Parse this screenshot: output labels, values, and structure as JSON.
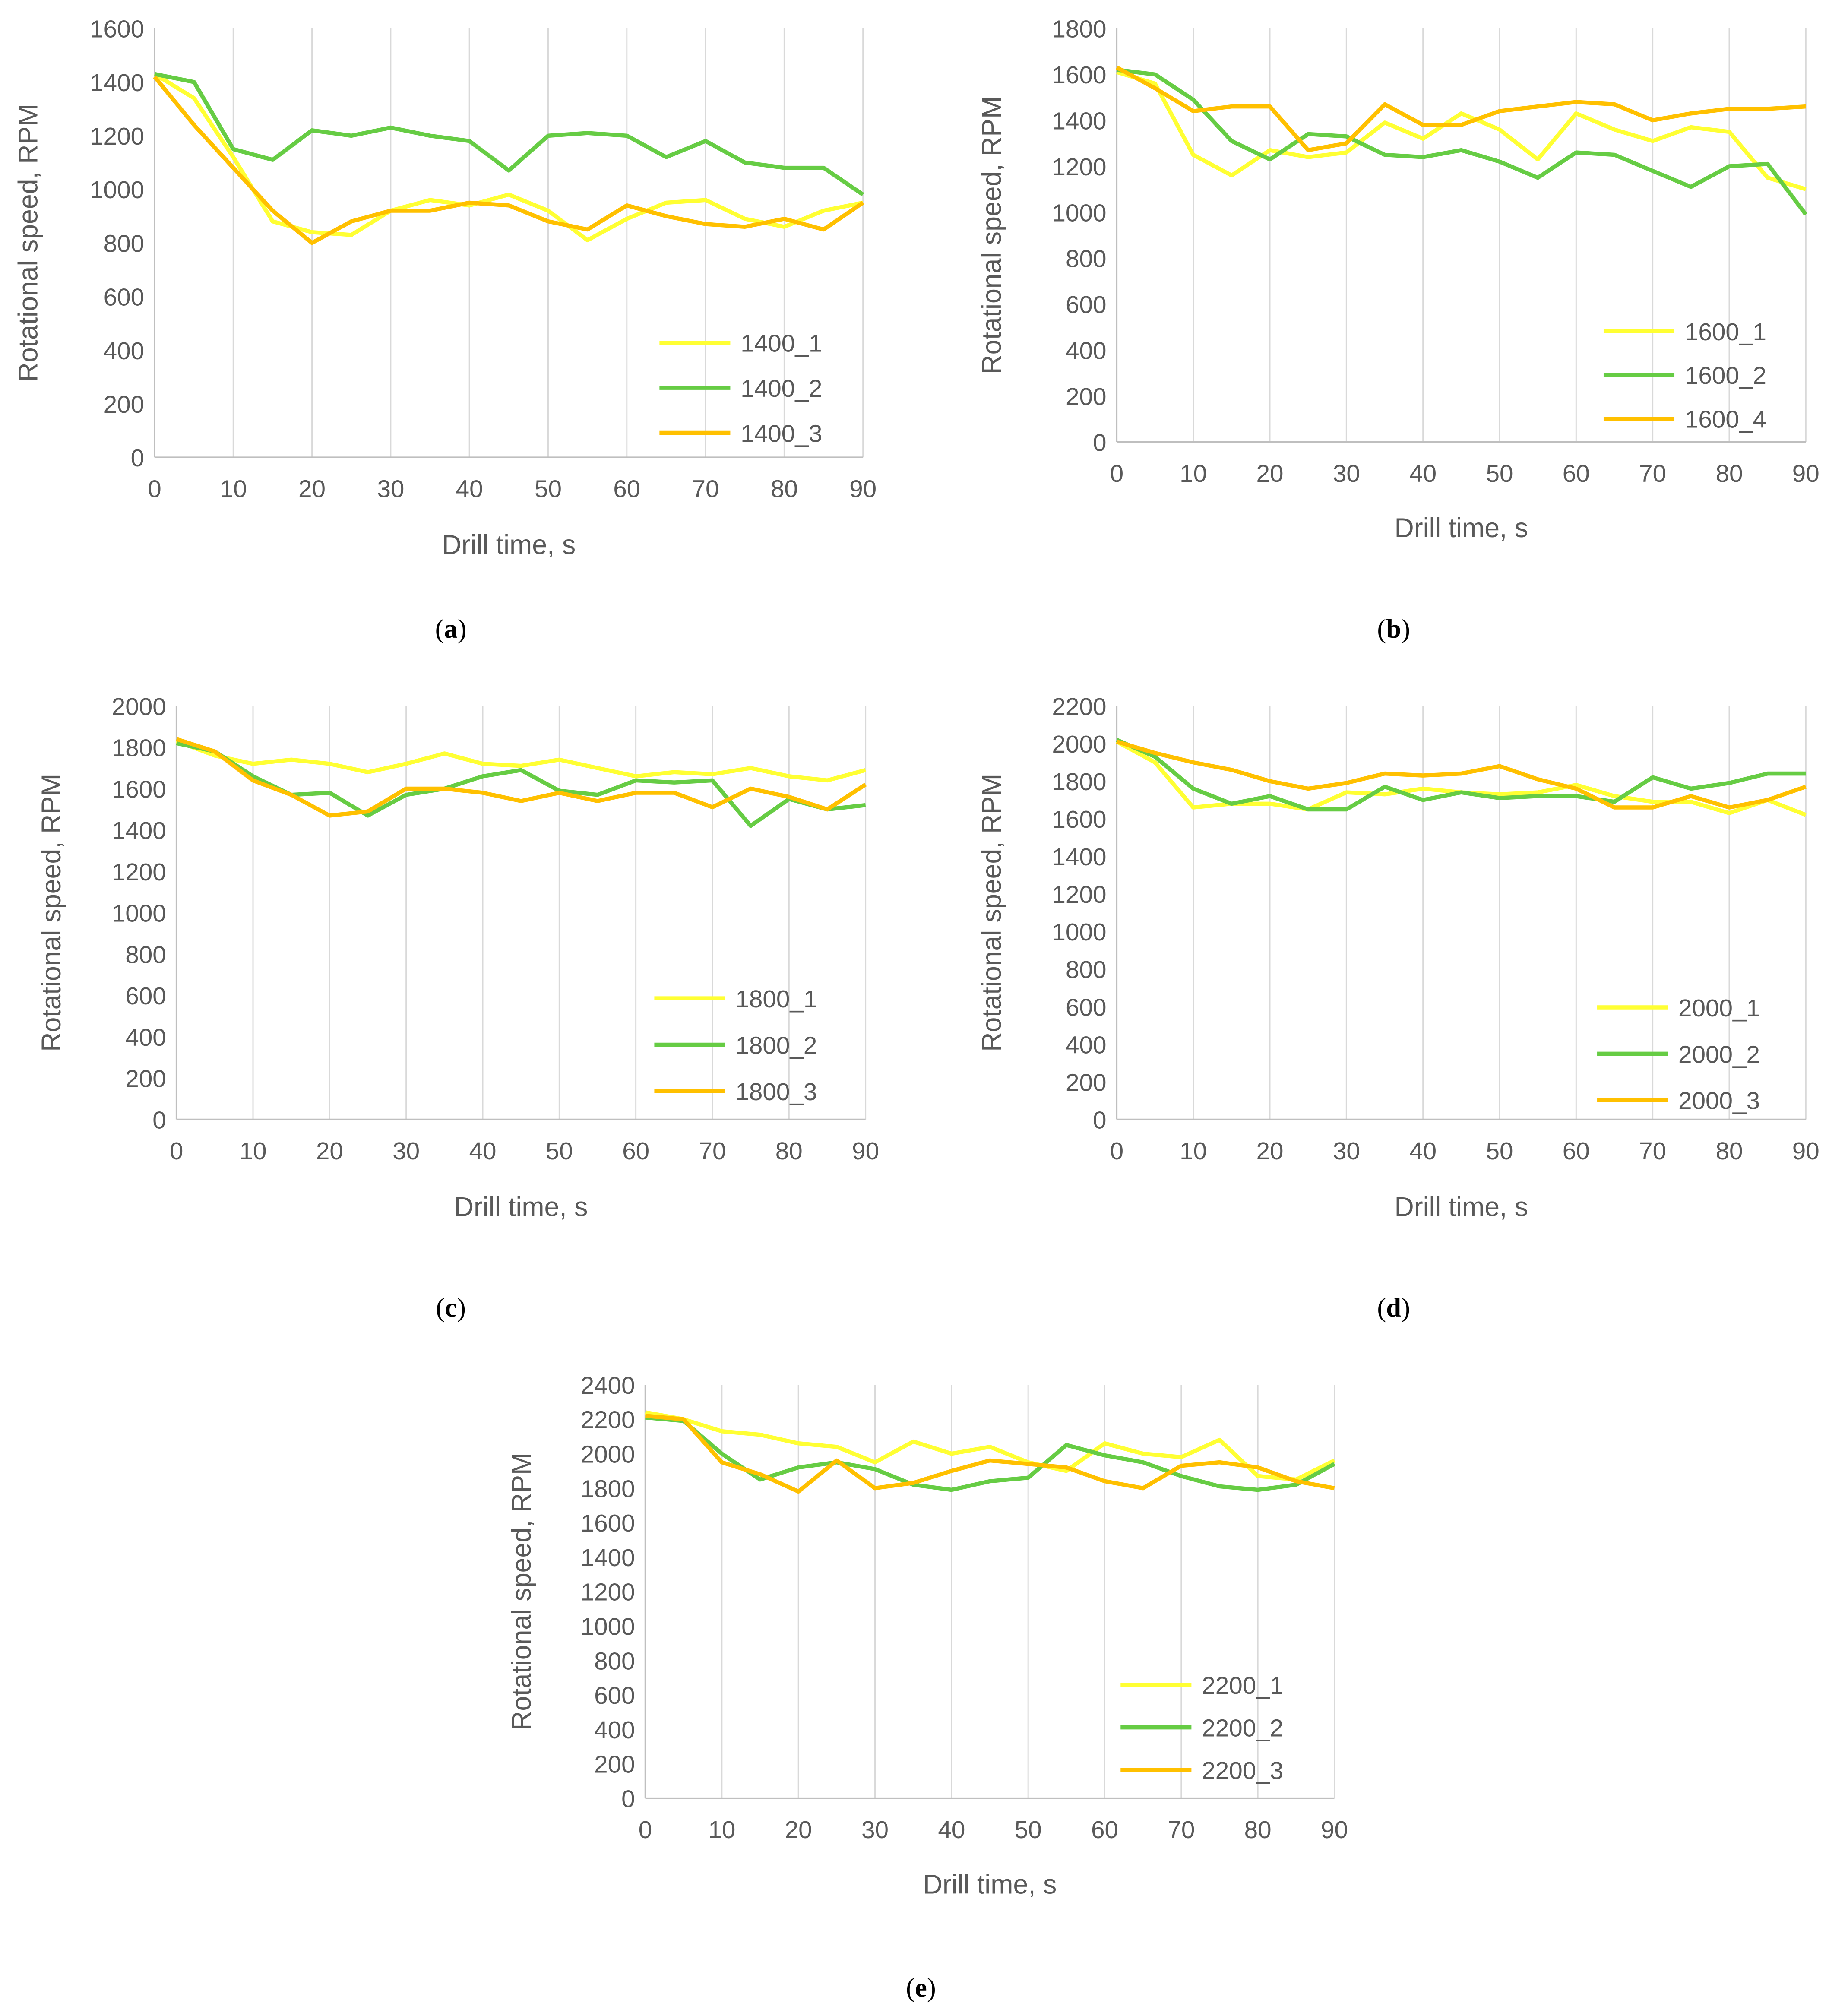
{
  "colors": {
    "series1": "#FFFF33",
    "series2": "#66CC44",
    "series3": "#FFC000",
    "grid": "#D9D9D9",
    "axis": "#BFBFBF"
  },
  "chart_data": [
    {
      "type": "line",
      "caption": "a",
      "xlabel": "Drill time, s",
      "ylabel": "Rotational speed, RPM",
      "xlim": [
        0,
        90
      ],
      "ylim": [
        0,
        1600
      ],
      "xticks": [
        0,
        10,
        20,
        30,
        40,
        50,
        60,
        70,
        80,
        90
      ],
      "yticks": [
        0,
        200,
        400,
        600,
        800,
        1000,
        1200,
        1400,
        1600
      ],
      "grid": "vertical",
      "legend": "bottom-right",
      "x": [
        0,
        5,
        10,
        15,
        20,
        25,
        30,
        35,
        40,
        45,
        50,
        55,
        60,
        65,
        70,
        75,
        80,
        85,
        90
      ],
      "series": [
        {
          "name": "1400_1",
          "values": [
            1430,
            1340,
            1120,
            880,
            840,
            830,
            920,
            960,
            940,
            980,
            920,
            810,
            890,
            950,
            960,
            890,
            860,
            920,
            950
          ]
        },
        {
          "name": "1400_2",
          "values": [
            1430,
            1400,
            1150,
            1110,
            1220,
            1200,
            1230,
            1200,
            1180,
            1070,
            1200,
            1210,
            1200,
            1120,
            1180,
            1100,
            1080,
            1080,
            980
          ]
        },
        {
          "name": "1400_3",
          "values": [
            1420,
            1240,
            1080,
            920,
            800,
            880,
            920,
            920,
            950,
            940,
            880,
            850,
            940,
            900,
            870,
            860,
            890,
            850,
            950
          ]
        }
      ]
    },
    {
      "type": "line",
      "caption": "b",
      "xlabel": "Drill time, s",
      "ylabel": "Rotational speed, RPM",
      "xlim": [
        0,
        90
      ],
      "ylim": [
        0,
        1800
      ],
      "xticks": [
        0,
        10,
        20,
        30,
        40,
        50,
        60,
        70,
        80,
        90
      ],
      "yticks": [
        0,
        200,
        400,
        600,
        800,
        1000,
        1200,
        1400,
        1600,
        1800
      ],
      "grid": "vertical",
      "legend": "bottom-right",
      "x": [
        0,
        5,
        10,
        15,
        20,
        25,
        30,
        35,
        40,
        45,
        50,
        55,
        60,
        65,
        70,
        75,
        80,
        85,
        90
      ],
      "series": [
        {
          "name": "1600_1",
          "values": [
            1610,
            1560,
            1250,
            1160,
            1270,
            1240,
            1260,
            1390,
            1320,
            1430,
            1360,
            1230,
            1430,
            1360,
            1310,
            1370,
            1350,
            1150,
            1100
          ]
        },
        {
          "name": "1600_2",
          "values": [
            1620,
            1600,
            1490,
            1310,
            1230,
            1340,
            1330,
            1250,
            1240,
            1270,
            1220,
            1150,
            1260,
            1250,
            1180,
            1110,
            1200,
            1210,
            990
          ]
        },
        {
          "name": "1600_4",
          "values": [
            1630,
            1540,
            1440,
            1460,
            1460,
            1270,
            1300,
            1470,
            1380,
            1380,
            1440,
            1460,
            1480,
            1470,
            1400,
            1430,
            1450,
            1450,
            1460
          ]
        }
      ]
    },
    {
      "type": "line",
      "caption": "c",
      "xlabel": "Drill time, s",
      "ylabel": "Rotational speed, RPM",
      "xlim": [
        0,
        90
      ],
      "ylim": [
        0,
        2000
      ],
      "xticks": [
        0,
        10,
        20,
        30,
        40,
        50,
        60,
        70,
        80,
        90
      ],
      "yticks": [
        0,
        200,
        400,
        600,
        800,
        1000,
        1200,
        1400,
        1600,
        1800,
        2000
      ],
      "grid": "vertical",
      "legend": "bottom-right",
      "x": [
        0,
        5,
        10,
        15,
        20,
        25,
        30,
        35,
        40,
        45,
        50,
        55,
        60,
        65,
        70,
        75,
        80,
        85,
        90
      ],
      "series": [
        {
          "name": "1800_1",
          "values": [
            1830,
            1760,
            1720,
            1740,
            1720,
            1680,
            1720,
            1770,
            1720,
            1710,
            1740,
            1700,
            1660,
            1680,
            1670,
            1700,
            1660,
            1640,
            1690
          ]
        },
        {
          "name": "1800_2",
          "values": [
            1820,
            1780,
            1660,
            1570,
            1580,
            1470,
            1570,
            1600,
            1660,
            1690,
            1590,
            1570,
            1640,
            1630,
            1640,
            1420,
            1550,
            1500,
            1520
          ]
        },
        {
          "name": "1800_3",
          "values": [
            1840,
            1780,
            1640,
            1570,
            1470,
            1490,
            1600,
            1600,
            1580,
            1540,
            1580,
            1540,
            1580,
            1580,
            1510,
            1600,
            1560,
            1500,
            1620
          ]
        }
      ]
    },
    {
      "type": "line",
      "caption": "d",
      "xlabel": "Drill time, s",
      "ylabel": "Rotational speed, RPM",
      "xlim": [
        0,
        90
      ],
      "ylim": [
        0,
        2200
      ],
      "xticks": [
        0,
        10,
        20,
        30,
        40,
        50,
        60,
        70,
        80,
        90
      ],
      "yticks": [
        0,
        200,
        400,
        600,
        800,
        1000,
        1200,
        1400,
        1600,
        1800,
        2000,
        2200
      ],
      "grid": "vertical",
      "legend": "bottom-right",
      "x": [
        0,
        5,
        10,
        15,
        20,
        25,
        30,
        35,
        40,
        45,
        50,
        55,
        60,
        65,
        70,
        75,
        80,
        85,
        90
      ],
      "series": [
        {
          "name": "2000_1",
          "values": [
            2010,
            1900,
            1660,
            1680,
            1680,
            1650,
            1740,
            1730,
            1760,
            1740,
            1730,
            1740,
            1780,
            1720,
            1690,
            1690,
            1630,
            1700,
            1620
          ]
        },
        {
          "name": "2000_2",
          "values": [
            2020,
            1930,
            1760,
            1680,
            1720,
            1650,
            1650,
            1770,
            1700,
            1740,
            1710,
            1720,
            1720,
            1690,
            1820,
            1760,
            1790,
            1840,
            1840
          ]
        },
        {
          "name": "2000_3",
          "values": [
            2010,
            1950,
            1900,
            1860,
            1800,
            1760,
            1790,
            1840,
            1830,
            1840,
            1880,
            1810,
            1760,
            1660,
            1660,
            1720,
            1660,
            1700,
            1770
          ]
        }
      ]
    },
    {
      "type": "line",
      "caption": "e",
      "xlabel": "Drill time, s",
      "ylabel": "Rotational speed, RPM",
      "xlim": [
        0,
        90
      ],
      "ylim": [
        0,
        2400
      ],
      "xticks": [
        0,
        10,
        20,
        30,
        40,
        50,
        60,
        70,
        80,
        90
      ],
      "yticks": [
        0,
        200,
        400,
        600,
        800,
        1000,
        1200,
        1400,
        1600,
        1800,
        2000,
        2200,
        2400
      ],
      "grid": "vertical",
      "legend": "bottom-right",
      "x": [
        0,
        5,
        10,
        15,
        20,
        25,
        30,
        35,
        40,
        45,
        50,
        55,
        60,
        65,
        70,
        75,
        80,
        85,
        90
      ],
      "series": [
        {
          "name": "2200_1",
          "values": [
            2240,
            2200,
            2130,
            2110,
            2060,
            2040,
            1950,
            2070,
            2000,
            2040,
            1950,
            1900,
            2060,
            2000,
            1980,
            2080,
            1870,
            1850,
            1960
          ]
        },
        {
          "name": "2200_2",
          "values": [
            2210,
            2190,
            2000,
            1850,
            1920,
            1950,
            1910,
            1820,
            1790,
            1840,
            1860,
            2050,
            1990,
            1950,
            1870,
            1810,
            1790,
            1820,
            1940
          ]
        },
        {
          "name": "2200_3",
          "values": [
            2220,
            2200,
            1950,
            1880,
            1780,
            1960,
            1800,
            1830,
            1900,
            1960,
            1940,
            1920,
            1840,
            1800,
            1930,
            1950,
            1920,
            1840,
            1800
          ]
        }
      ]
    }
  ]
}
